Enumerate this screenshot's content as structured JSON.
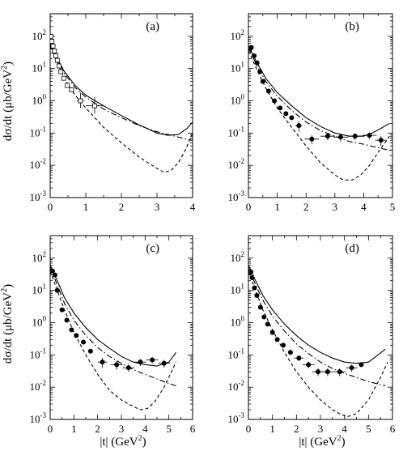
{
  "figure": {
    "ylabel": "dσ/dt  (μb/GeV",
    "ylabel_sup": "2",
    "ylabel_end": ")",
    "xlabel": "|t|  (GeV",
    "xlabel_sup": "2",
    "xlabel_end": ")"
  },
  "chart_data": [
    {
      "panel": "(a)",
      "type": "scatter",
      "yscale": "log",
      "xlim": [
        0,
        4
      ],
      "ylim": [
        0.001,
        500
      ],
      "xticks": [
        "0",
        "1",
        "2",
        "3",
        "4"
      ],
      "marker": "open-square",
      "points": {
        "x": [
          0.02,
          0.05,
          0.08,
          0.12,
          0.16,
          0.2,
          0.25,
          0.3,
          0.38,
          0.48,
          0.6,
          0.85,
          1.25
        ],
        "y": [
          100,
          70,
          50,
          35,
          25,
          18,
          12,
          8,
          5,
          3,
          2.2,
          1.0,
          0.7
        ],
        "xerr": [
          0,
          0,
          0,
          0,
          0,
          0,
          0,
          0,
          0,
          0,
          0,
          0.1,
          0.25
        ],
        "yerr_lo": [
          0,
          0,
          0,
          0,
          0,
          0,
          0,
          0,
          0,
          0,
          0,
          0.4,
          0.3
        ],
        "yerr_hi": [
          0,
          0,
          0,
          0,
          0,
          0,
          0,
          0,
          0,
          0,
          0,
          0.8,
          0.6
        ]
      },
      "series": [
        {
          "style": "solid",
          "x": [
            0,
            0.2,
            0.4,
            0.7,
            1,
            1.5,
            2,
            2.5,
            3,
            3.3,
            3.6,
            3.85,
            4
          ],
          "y": [
            60,
            20,
            8,
            3,
            1.5,
            0.7,
            0.35,
            0.18,
            0.1,
            0.085,
            0.09,
            0.14,
            0.22
          ]
        },
        {
          "style": "dashdot",
          "x": [
            0,
            0.2,
            0.4,
            0.7,
            1,
            1.5,
            2,
            2.5,
            3,
            3.5,
            3.9,
            4
          ],
          "y": [
            55,
            18,
            7,
            2.6,
            1.3,
            0.55,
            0.3,
            0.17,
            0.11,
            0.08,
            0.062,
            0.06
          ]
        },
        {
          "style": "dashed",
          "x": [
            0,
            0.2,
            0.4,
            0.7,
            1,
            1.5,
            2,
            2.5,
            3,
            3.2,
            3.4,
            3.6,
            3.8,
            4
          ],
          "y": [
            50,
            15,
            5,
            1.5,
            0.6,
            0.15,
            0.05,
            0.018,
            0.008,
            0.006,
            0.007,
            0.012,
            0.03,
            0.1
          ]
        }
      ]
    },
    {
      "panel": "(b)",
      "type": "scatter",
      "yscale": "log",
      "xlim": [
        0,
        5
      ],
      "ylim": [
        0.001,
        500
      ],
      "xticks": [
        "0",
        "1",
        "2",
        "3",
        "4",
        "5"
      ],
      "marker": "filled-circle",
      "points": {
        "x": [
          0.05,
          0.1,
          0.2,
          0.3,
          0.4,
          0.5,
          0.7,
          0.9,
          1.1,
          1.3,
          1.5,
          1.75,
          2.2,
          2.75,
          3.2,
          3.7,
          4.2,
          4.6
        ],
        "y": [
          40,
          45,
          25,
          15,
          8,
          4,
          2,
          1,
          0.6,
          0.4,
          0.3,
          0.17,
          0.065,
          0.08,
          0.075,
          0.08,
          0.085,
          0.06
        ],
        "xerr": [
          0,
          0,
          0,
          0,
          0,
          0,
          0,
          0,
          0,
          0,
          0,
          0.12,
          0.25,
          0.25,
          0.25,
          0.25,
          0.25,
          0.2
        ],
        "yerr_lo": [
          0,
          0,
          0,
          0,
          0,
          0,
          0,
          0,
          0,
          0,
          0,
          0.06,
          0.02,
          0.02,
          0.02,
          0.02,
          0.02,
          0.02
        ],
        "yerr_hi": [
          0,
          0,
          0,
          0,
          0,
          0,
          0,
          0,
          0,
          0,
          0,
          0.06,
          0.02,
          0.02,
          0.02,
          0.02,
          0.02,
          0.02
        ]
      },
      "series": [
        {
          "style": "solid",
          "x": [
            0,
            0.3,
            0.6,
            1,
            1.5,
            2,
            2.5,
            3,
            3.5,
            4,
            4.3,
            4.6,
            4.9
          ],
          "y": [
            50,
            15,
            5,
            1.8,
            0.7,
            0.3,
            0.16,
            0.1,
            0.08,
            0.08,
            0.1,
            0.14,
            0.2
          ]
        },
        {
          "style": "dashdot",
          "x": [
            0,
            0.3,
            0.6,
            1,
            1.5,
            2,
            2.5,
            3,
            3.5,
            4,
            4.5,
            5
          ],
          "y": [
            45,
            12,
            4,
            1.4,
            0.5,
            0.22,
            0.12,
            0.08,
            0.055,
            0.045,
            0.035,
            0.028
          ]
        },
        {
          "style": "dashed",
          "x": [
            0,
            0.3,
            0.6,
            1,
            1.5,
            2,
            2.5,
            3,
            3.3,
            3.6,
            3.9,
            4.2,
            4.5,
            4.9
          ],
          "y": [
            35,
            9,
            2.5,
            0.6,
            0.15,
            0.04,
            0.012,
            0.005,
            0.0035,
            0.0035,
            0.005,
            0.01,
            0.025,
            0.08
          ]
        }
      ]
    },
    {
      "panel": "(c)",
      "type": "scatter",
      "yscale": "log",
      "xlim": [
        0,
        6
      ],
      "ylim": [
        0.001,
        500
      ],
      "xticks": [
        "0",
        "1",
        "2",
        "3",
        "4",
        "5",
        "6"
      ],
      "marker": "filled-circle",
      "points": {
        "x": [
          0.1,
          0.2,
          0.3,
          0.5,
          0.7,
          0.9,
          1.1,
          1.4,
          1.7,
          2.2,
          2.8,
          3.3,
          3.8,
          4.3,
          4.8
        ],
        "y": [
          40,
          30,
          10,
          2.5,
          1.2,
          0.6,
          0.4,
          0.25,
          0.13,
          0.06,
          0.05,
          0.04,
          0.06,
          0.07,
          0.055
        ],
        "xerr": [
          0,
          0,
          0,
          0,
          0,
          0,
          0,
          0,
          0.1,
          0.2,
          0.25,
          0.25,
          0.25,
          0.25,
          0.25
        ],
        "yerr_lo": [
          0,
          0,
          0,
          0,
          0,
          0,
          0,
          0,
          0.02,
          0.02,
          0.015,
          0.01,
          0.015,
          0.015,
          0.015
        ],
        "yerr_hi": [
          0,
          0,
          0,
          0,
          0,
          0,
          0,
          0,
          0.02,
          0.02,
          0.015,
          0.01,
          0.015,
          0.015,
          0.015
        ]
      },
      "series": [
        {
          "style": "solid",
          "x": [
            0,
            0.3,
            0.6,
            1,
            1.5,
            2,
            2.5,
            3,
            3.5,
            4,
            4.5,
            5,
            5.3
          ],
          "y": [
            60,
            20,
            6,
            2,
            0.7,
            0.3,
            0.16,
            0.09,
            0.06,
            0.05,
            0.045,
            0.06,
            0.12
          ]
        },
        {
          "style": "dashdot",
          "x": [
            0,
            0.3,
            0.6,
            1,
            1.5,
            2,
            2.5,
            3,
            3.5,
            4,
            4.5,
            5,
            5.3
          ],
          "y": [
            50,
            15,
            4,
            1.2,
            0.4,
            0.17,
            0.09,
            0.055,
            0.035,
            0.025,
            0.018,
            0.013,
            0.011
          ]
        },
        {
          "style": "dashed",
          "x": [
            0,
            0.3,
            0.6,
            1,
            1.5,
            2,
            2.5,
            3,
            3.5,
            3.8,
            4.1,
            4.4,
            4.8,
            5.3
          ],
          "y": [
            40,
            10,
            2.5,
            0.5,
            0.1,
            0.025,
            0.008,
            0.004,
            0.0025,
            0.002,
            0.0022,
            0.0035,
            0.01,
            0.06
          ]
        }
      ]
    },
    {
      "panel": "(d)",
      "type": "scatter",
      "yscale": "log",
      "xlim": [
        0,
        6
      ],
      "ylim": [
        0.001,
        500
      ],
      "xticks": [
        "0",
        "1",
        "2",
        "3",
        "4",
        "5",
        "6"
      ],
      "marker": "filled-circle",
      "points": {
        "x": [
          0.05,
          0.1,
          0.15,
          0.25,
          0.35,
          0.5,
          0.65,
          0.8,
          1.0,
          1.2,
          1.45,
          1.75,
          2.1,
          2.5,
          2.9,
          3.3,
          3.8,
          4.3,
          4.7
        ],
        "y": [
          35,
          38,
          25,
          12,
          7,
          3,
          1.5,
          0.9,
          0.5,
          0.3,
          0.2,
          0.12,
          0.08,
          0.05,
          0.03,
          0.03,
          0.03,
          0.04,
          0.05
        ],
        "xerr": [
          0,
          0,
          0,
          0,
          0,
          0,
          0,
          0,
          0,
          0,
          0,
          0.1,
          0.2,
          0.25,
          0.25,
          0.25,
          0.25,
          0.25,
          0
        ],
        "yerr_lo": [
          0,
          0,
          0,
          0,
          0,
          0,
          0,
          0,
          0,
          0,
          0,
          0.02,
          0.015,
          0.012,
          0.008,
          0.008,
          0.008,
          0.01,
          0
        ],
        "yerr_hi": [
          0,
          0,
          0,
          0,
          0,
          0,
          0,
          0,
          0,
          0,
          0,
          0.02,
          0.015,
          0.012,
          0.008,
          0.008,
          0.008,
          0.01,
          0
        ]
      },
      "series": [
        {
          "style": "solid",
          "x": [
            0,
            0.3,
            0.6,
            1,
            1.5,
            2,
            2.5,
            3,
            3.5,
            4,
            4.5,
            5,
            5.4,
            5.7
          ],
          "y": [
            60,
            20,
            7,
            2.5,
            0.9,
            0.4,
            0.2,
            0.12,
            0.08,
            0.06,
            0.055,
            0.06,
            0.1,
            0.15
          ]
        },
        {
          "style": "dashdot",
          "x": [
            0,
            0.3,
            0.6,
            1,
            1.5,
            2,
            2.5,
            3,
            3.5,
            4,
            4.5,
            5,
            5.5,
            5.7
          ],
          "y": [
            50,
            15,
            5,
            1.6,
            0.55,
            0.22,
            0.11,
            0.06,
            0.038,
            0.027,
            0.02,
            0.015,
            0.012,
            0.011
          ]
        },
        {
          "style": "dashed",
          "x": [
            0,
            0.3,
            0.6,
            1,
            1.5,
            2,
            2.5,
            3,
            3.5,
            3.8,
            4.1,
            4.5,
            5,
            5.5,
            5.8
          ],
          "y": [
            40,
            10,
            2.5,
            0.6,
            0.12,
            0.03,
            0.01,
            0.004,
            0.002,
            0.0015,
            0.0012,
            0.0015,
            0.004,
            0.02,
            0.06
          ]
        }
      ]
    }
  ]
}
